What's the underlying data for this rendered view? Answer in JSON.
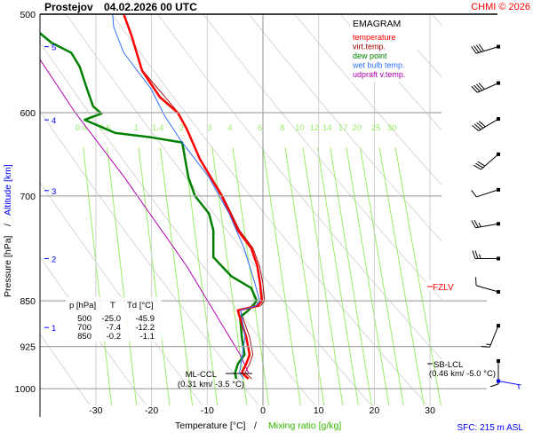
{
  "header": {
    "station": "Prostejov",
    "datetime": "04.02.2026 00 UTC",
    "credit": "CHMI © 2026"
  },
  "colors": {
    "temperature": "#ff0000",
    "virt_temp": "#a00000",
    "dew_point": "#008000",
    "wet_bulb": "#3070ff",
    "updraft": "#b000b0",
    "mixing": "#99ee66",
    "altitude": "#0000ff"
  },
  "chart_data": {
    "type": "emagram",
    "title": "EMAGRAM",
    "xlabel": "Temperature [°C]",
    "xlabel_sep": "/",
    "xlabel2": "Mixing ratio [g/kg]",
    "ylabel": "Pressure [hPa]",
    "ylabel_sep": "/",
    "ylabel2": "Altitude [km]",
    "xlim": [
      -38,
      34
    ],
    "ylim": [
      500,
      1050
    ],
    "y_scale": "log",
    "x_ticks": [
      -30,
      -20,
      -10,
      0,
      10,
      20,
      30
    ],
    "p_ticks": [
      500,
      600,
      700,
      850,
      925,
      1000
    ],
    "altitude_ticks": [
      [
        5,
        531
      ],
      [
        4,
        608
      ],
      [
        3,
        693
      ],
      [
        2,
        786
      ],
      [
        1,
        893
      ]
    ],
    "mixing_ratio_labels": [
      "0.4",
      "0.6",
      "1",
      "1.4",
      "2",
      "3",
      "4",
      "6",
      "8",
      "10",
      "12",
      "14",
      "17",
      "20",
      "25",
      "30"
    ],
    "mixing_ratio_label_p": 616,
    "dry_adiabats_theta_K": [
      230,
      240,
      250,
      260,
      270,
      280,
      290,
      300,
      310,
      320,
      330,
      340,
      350,
      360,
      370,
      380,
      390,
      400,
      410,
      420
    ],
    "legend": [
      "temperature",
      "virt.temp.",
      "dew point",
      "wet bulb temp.",
      "udpraft v.temp."
    ],
    "series": [
      {
        "name": "temperature",
        "points": [
          [
            500,
            -25.0
          ],
          [
            520,
            -23.6
          ],
          [
            555,
            -21.7
          ],
          [
            583,
            -18.5
          ],
          [
            600,
            -15.3
          ],
          [
            618,
            -13.7
          ],
          [
            654,
            -11.3
          ],
          [
            700,
            -7.4
          ],
          [
            746,
            -4.5
          ],
          [
            771,
            -2.1
          ],
          [
            797,
            -1.0
          ],
          [
            824,
            -0.5
          ],
          [
            850,
            -0.2
          ],
          [
            858,
            -1.0
          ],
          [
            865,
            -4.5
          ],
          [
            872,
            -4.3
          ],
          [
            909,
            -3.0
          ],
          [
            939,
            -2.4
          ],
          [
            955,
            -3.0
          ],
          [
            971,
            -3.8
          ],
          [
            982,
            -2.6
          ]
        ]
      },
      {
        "name": "virt.temp.",
        "points": [
          [
            500,
            -24.9
          ],
          [
            555,
            -21.6
          ],
          [
            600,
            -15.2
          ],
          [
            654,
            -11.2
          ],
          [
            700,
            -7.2
          ],
          [
            746,
            -4.2
          ],
          [
            771,
            -1.8
          ],
          [
            797,
            -0.6
          ],
          [
            824,
            0.0
          ],
          [
            850,
            0.3
          ],
          [
            858,
            -0.5
          ],
          [
            865,
            -4.0
          ],
          [
            872,
            -3.8
          ],
          [
            909,
            -2.4
          ],
          [
            939,
            -1.8
          ],
          [
            955,
            -2.4
          ],
          [
            971,
            -3.2
          ],
          [
            982,
            -2.0
          ]
        ]
      },
      {
        "name": "dew point",
        "points": [
          [
            500,
            -45.9
          ],
          [
            518,
            -40.0
          ],
          [
            527,
            -38.0
          ],
          [
            537,
            -34.4
          ],
          [
            551,
            -32.9
          ],
          [
            574,
            -31.6
          ],
          [
            593,
            -30.5
          ],
          [
            601,
            -29.0
          ],
          [
            608,
            -32.0
          ],
          [
            623,
            -26.5
          ],
          [
            628,
            -20.1
          ],
          [
            634,
            -14.5
          ],
          [
            676,
            -13.4
          ],
          [
            700,
            -12.2
          ],
          [
            723,
            -9.7
          ],
          [
            746,
            -8.9
          ],
          [
            784,
            -8.9
          ],
          [
            812,
            -5.7
          ],
          [
            830,
            -2.1
          ],
          [
            850,
            -1.1
          ],
          [
            865,
            -2.6
          ],
          [
            876,
            -4.1
          ],
          [
            909,
            -3.8
          ],
          [
            939,
            -3.3
          ],
          [
            955,
            -4.5
          ],
          [
            971,
            -5.0
          ],
          [
            982,
            -4.8
          ]
        ]
      },
      {
        "name": "wet bulb temp.",
        "points": [
          [
            500,
            -27.0
          ],
          [
            512,
            -26.8
          ],
          [
            537,
            -25.0
          ],
          [
            574,
            -20.1
          ],
          [
            603,
            -17.7
          ],
          [
            634,
            -14.5
          ],
          [
            676,
            -9.7
          ],
          [
            723,
            -6.1
          ],
          [
            771,
            -3.4
          ],
          [
            824,
            -1.4
          ],
          [
            850,
            -0.6
          ],
          [
            858,
            -1.3
          ],
          [
            865,
            -4.0
          ],
          [
            909,
            -3.2
          ],
          [
            971,
            -4.2
          ],
          [
            982,
            -3.5
          ]
        ]
      },
      {
        "name": "udpraft v.temp.",
        "points": [
          [
            544,
            -40.0
          ],
          [
            600,
            -33.7
          ],
          [
            676,
            -24.9
          ],
          [
            797,
            -13.7
          ],
          [
            939,
            -4.1
          ],
          [
            971,
            -2.6
          ]
        ]
      }
    ],
    "table": {
      "headers": [
        "p [hPa]",
        "T",
        "Td [°C]"
      ],
      "rows": [
        [
          "500",
          "-25.0",
          "-45.9"
        ],
        [
          "700",
          "-7.4",
          "-12.2"
        ],
        [
          "850",
          "-0.2",
          "-1.1"
        ]
      ]
    },
    "annotations": {
      "fzlv": "FZLV",
      "fzlv_p": 832,
      "ml_ccl": "ML-CCL",
      "ml_ccl_detail": "(0.31 km/ -3.5 °C)",
      "ml_ccl_p": 971,
      "sb_lcl": "SB-LCL",
      "sb_lcl_detail": "(0.46 km/ -5.0 °C)",
      "sb_lcl_p": 950
    },
    "wind_barbs": [
      [
        531,
        253,
        40
      ],
      [
        568,
        246,
        40
      ],
      [
        607,
        239,
        40
      ],
      [
        648,
        229,
        30
      ],
      [
        692,
        252,
        10
      ],
      [
        737,
        260,
        25
      ],
      [
        786,
        270,
        25
      ],
      [
        836,
        286,
        10
      ],
      [
        890,
        202,
        15
      ],
      [
        950,
        180,
        10
      ]
    ],
    "surface_wind": [
      986,
      100,
      5
    ],
    "sfc": "SFC: 215 m ASL"
  }
}
